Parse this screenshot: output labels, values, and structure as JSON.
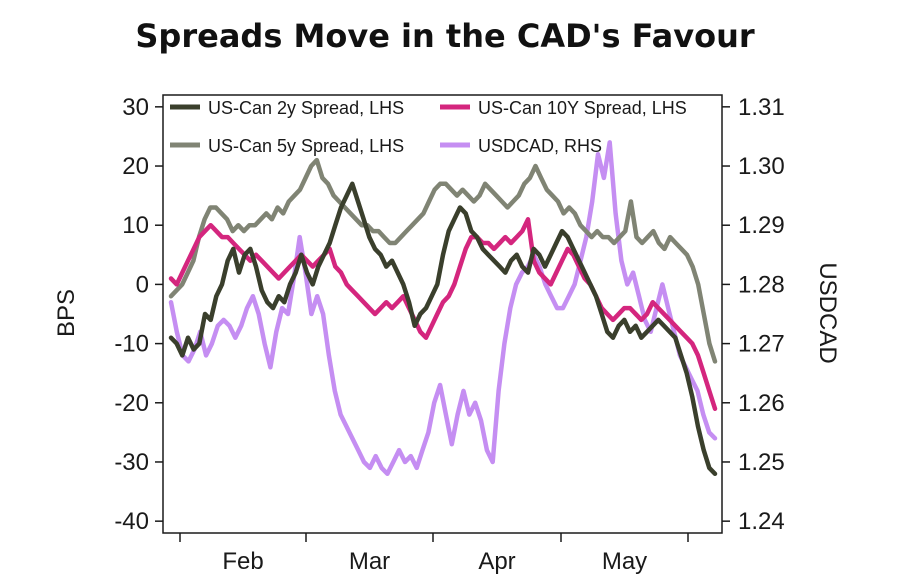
{
  "chart_data": {
    "type": "line",
    "title": "Spreads Move in the CAD's Favour",
    "ylabel_left": "BPS",
    "ylabel_right": "USDCAD",
    "ylim_left": [
      -42,
      32
    ],
    "ylim_right": [
      1.238,
      1.312
    ],
    "yticks_left": [
      "30",
      "20",
      "10",
      "0",
      "-10",
      "-20",
      "-30",
      "-40"
    ],
    "yticks_right": [
      "1.31",
      "1.30",
      "1.29",
      "1.28",
      "1.27",
      "1.26",
      "1.25",
      "1.24"
    ],
    "xticks": [
      "Feb",
      "Mar",
      "Apr",
      "May"
    ],
    "legend": [
      "US-Can 2y Spread, LHS",
      "US-Can 10Y Spread, LHS",
      "US-Can 5y Spread, LHS",
      "USDCAD, RHS"
    ],
    "series": [
      {
        "name": "US-Can 2y Spread, LHS",
        "axis": "left",
        "color": "#3a3f2c",
        "values": [
          -9,
          -10,
          -12,
          -9,
          -11,
          -10,
          -5,
          -6,
          -2,
          0,
          4,
          6,
          2,
          5,
          6,
          3,
          -1,
          -3,
          -4,
          -2,
          -3,
          0,
          2,
          5,
          2,
          0,
          3,
          5,
          7,
          10,
          13,
          15,
          17,
          14,
          11,
          8,
          6,
          5,
          3,
          4,
          2,
          0,
          -3,
          -7,
          -5,
          -4,
          -2,
          0,
          5,
          9,
          11,
          13,
          12,
          9,
          8,
          6,
          5,
          4,
          3,
          2,
          4,
          5,
          3,
          2,
          6,
          5,
          3,
          5,
          7,
          9,
          8,
          6,
          4,
          2,
          0,
          -2,
          -5,
          -8,
          -9,
          -7,
          -6,
          -8,
          -7,
          -9,
          -8,
          -7,
          -6,
          -7,
          -8,
          -9,
          -12,
          -15,
          -19,
          -24,
          -28,
          -31,
          -32
        ]
      },
      {
        "name": "US-Can 10Y Spread, LHS",
        "axis": "left",
        "color": "#d4267e",
        "values": [
          1,
          0,
          2,
          4,
          6,
          8,
          9,
          10,
          9,
          8,
          8,
          7,
          6,
          5,
          4,
          5,
          4,
          3,
          2,
          1,
          2,
          3,
          4,
          5,
          4,
          3,
          4,
          5,
          6,
          3,
          2,
          0,
          -1,
          -2,
          -3,
          -4,
          -5,
          -4,
          -3,
          -4,
          -3,
          -2,
          -4,
          -6,
          -8,
          -9,
          -7,
          -5,
          -3,
          -2,
          0,
          3,
          6,
          8,
          8,
          7,
          7,
          6,
          7,
          8,
          7,
          8,
          9,
          11,
          4,
          2,
          1,
          0,
          2,
          4,
          6,
          5,
          3,
          1,
          0,
          -2,
          -4,
          -5,
          -6,
          -5,
          -4,
          -4,
          -5,
          -6,
          -5,
          -3,
          -4,
          -5,
          -6,
          -7,
          -8,
          -9,
          -10,
          -12,
          -15,
          -18,
          -21
        ]
      },
      {
        "name": "US-Can 5y Spread, LHS",
        "axis": "left",
        "color": "#808474",
        "values": [
          -2,
          -1,
          0,
          2,
          4,
          8,
          11,
          13,
          13,
          12,
          11,
          9,
          10,
          9,
          10,
          10,
          11,
          12,
          11,
          13,
          12,
          14,
          15,
          16,
          18,
          20,
          21,
          18,
          17,
          15,
          14,
          13,
          12,
          11,
          10,
          10,
          9,
          9,
          8,
          7,
          7,
          8,
          9,
          10,
          11,
          12,
          14,
          16,
          17,
          17,
          16,
          15,
          16,
          15,
          14,
          15,
          17,
          16,
          15,
          14,
          13,
          14,
          15,
          17,
          18,
          20,
          18,
          16,
          15,
          14,
          12,
          13,
          12,
          10,
          9,
          8,
          9,
          8,
          8,
          7,
          8,
          9,
          14,
          8,
          7,
          8,
          9,
          7,
          6,
          8,
          7,
          6,
          5,
          3,
          0,
          -5,
          -10,
          -13
        ]
      },
      {
        "name": "USDCAD, RHS",
        "axis": "right",
        "color": "#c58ef2",
        "values": [
          1.277,
          1.272,
          1.268,
          1.267,
          1.269,
          1.272,
          1.268,
          1.27,
          1.273,
          1.274,
          1.273,
          1.271,
          1.273,
          1.276,
          1.278,
          1.275,
          1.27,
          1.266,
          1.272,
          1.276,
          1.275,
          1.281,
          1.288,
          1.282,
          1.275,
          1.278,
          1.275,
          1.268,
          1.262,
          1.258,
          1.256,
          1.254,
          1.252,
          1.25,
          1.249,
          1.251,
          1.249,
          1.248,
          1.25,
          1.252,
          1.25,
          1.251,
          1.249,
          1.252,
          1.255,
          1.26,
          1.263,
          1.258,
          1.253,
          1.258,
          1.262,
          1.258,
          1.26,
          1.257,
          1.252,
          1.25,
          1.262,
          1.27,
          1.276,
          1.28,
          1.282,
          1.283,
          1.285,
          1.283,
          1.28,
          1.278,
          1.276,
          1.276,
          1.278,
          1.28,
          1.284,
          1.288,
          1.294,
          1.302,
          1.298,
          1.304,
          1.292,
          1.284,
          1.28,
          1.282,
          1.278,
          1.274,
          1.272,
          1.276,
          1.28,
          1.276,
          1.272,
          1.268,
          1.266,
          1.264,
          1.262,
          1.258,
          1.255,
          1.254
        ]
      }
    ]
  }
}
